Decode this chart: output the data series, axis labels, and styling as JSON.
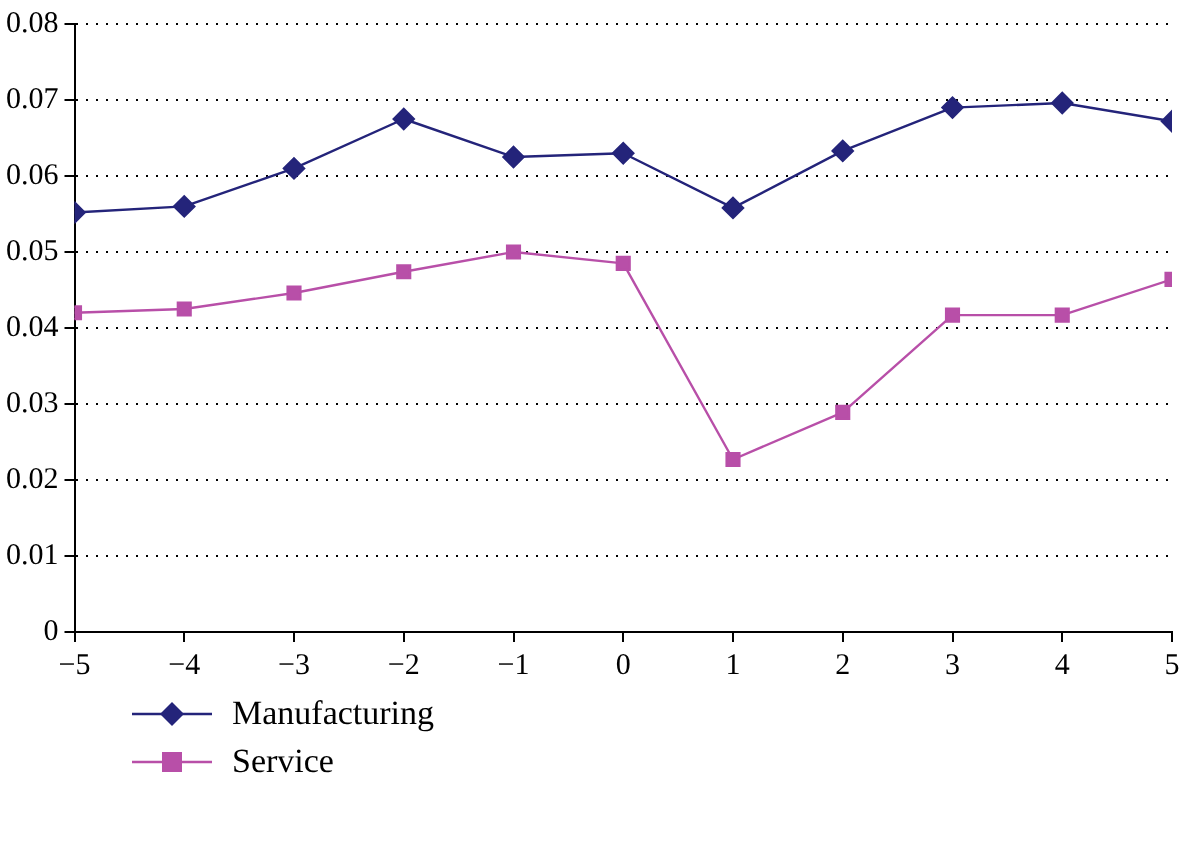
{
  "chart_data": {
    "type": "line",
    "x": [
      -5,
      -4,
      -3,
      -2,
      -1,
      0,
      1,
      2,
      3,
      4,
      5
    ],
    "series": [
      {
        "name": "Manufacturing",
        "color": "#24247a",
        "marker": "diamond",
        "values": [
          0.0552,
          0.056,
          0.061,
          0.0675,
          0.0625,
          0.063,
          0.0558,
          0.0633,
          0.069,
          0.0696,
          0.0672
        ]
      },
      {
        "name": "Service",
        "color": "#b84fa8",
        "marker": "square",
        "values": [
          0.042,
          0.0425,
          0.0446,
          0.0474,
          0.05,
          0.0485,
          0.0227,
          0.0289,
          0.0417,
          0.0417,
          0.0464
        ]
      }
    ],
    "xlim": [
      -5,
      5
    ],
    "xticks": [
      {
        "value": -5,
        "label": "−5"
      },
      {
        "value": -4,
        "label": "−4"
      },
      {
        "value": -3,
        "label": "−3"
      },
      {
        "value": -2,
        "label": "−2"
      },
      {
        "value": -1,
        "label": "−1"
      },
      0,
      1,
      2,
      3,
      4,
      5
    ],
    "ylim": [
      0,
      0.08
    ],
    "yticks": [
      0,
      0.01,
      0.02,
      0.03,
      0.04,
      0.05,
      0.06,
      0.07,
      0.08
    ],
    "grid": "y",
    "legend": "bottom left",
    "line_style": "solid"
  }
}
